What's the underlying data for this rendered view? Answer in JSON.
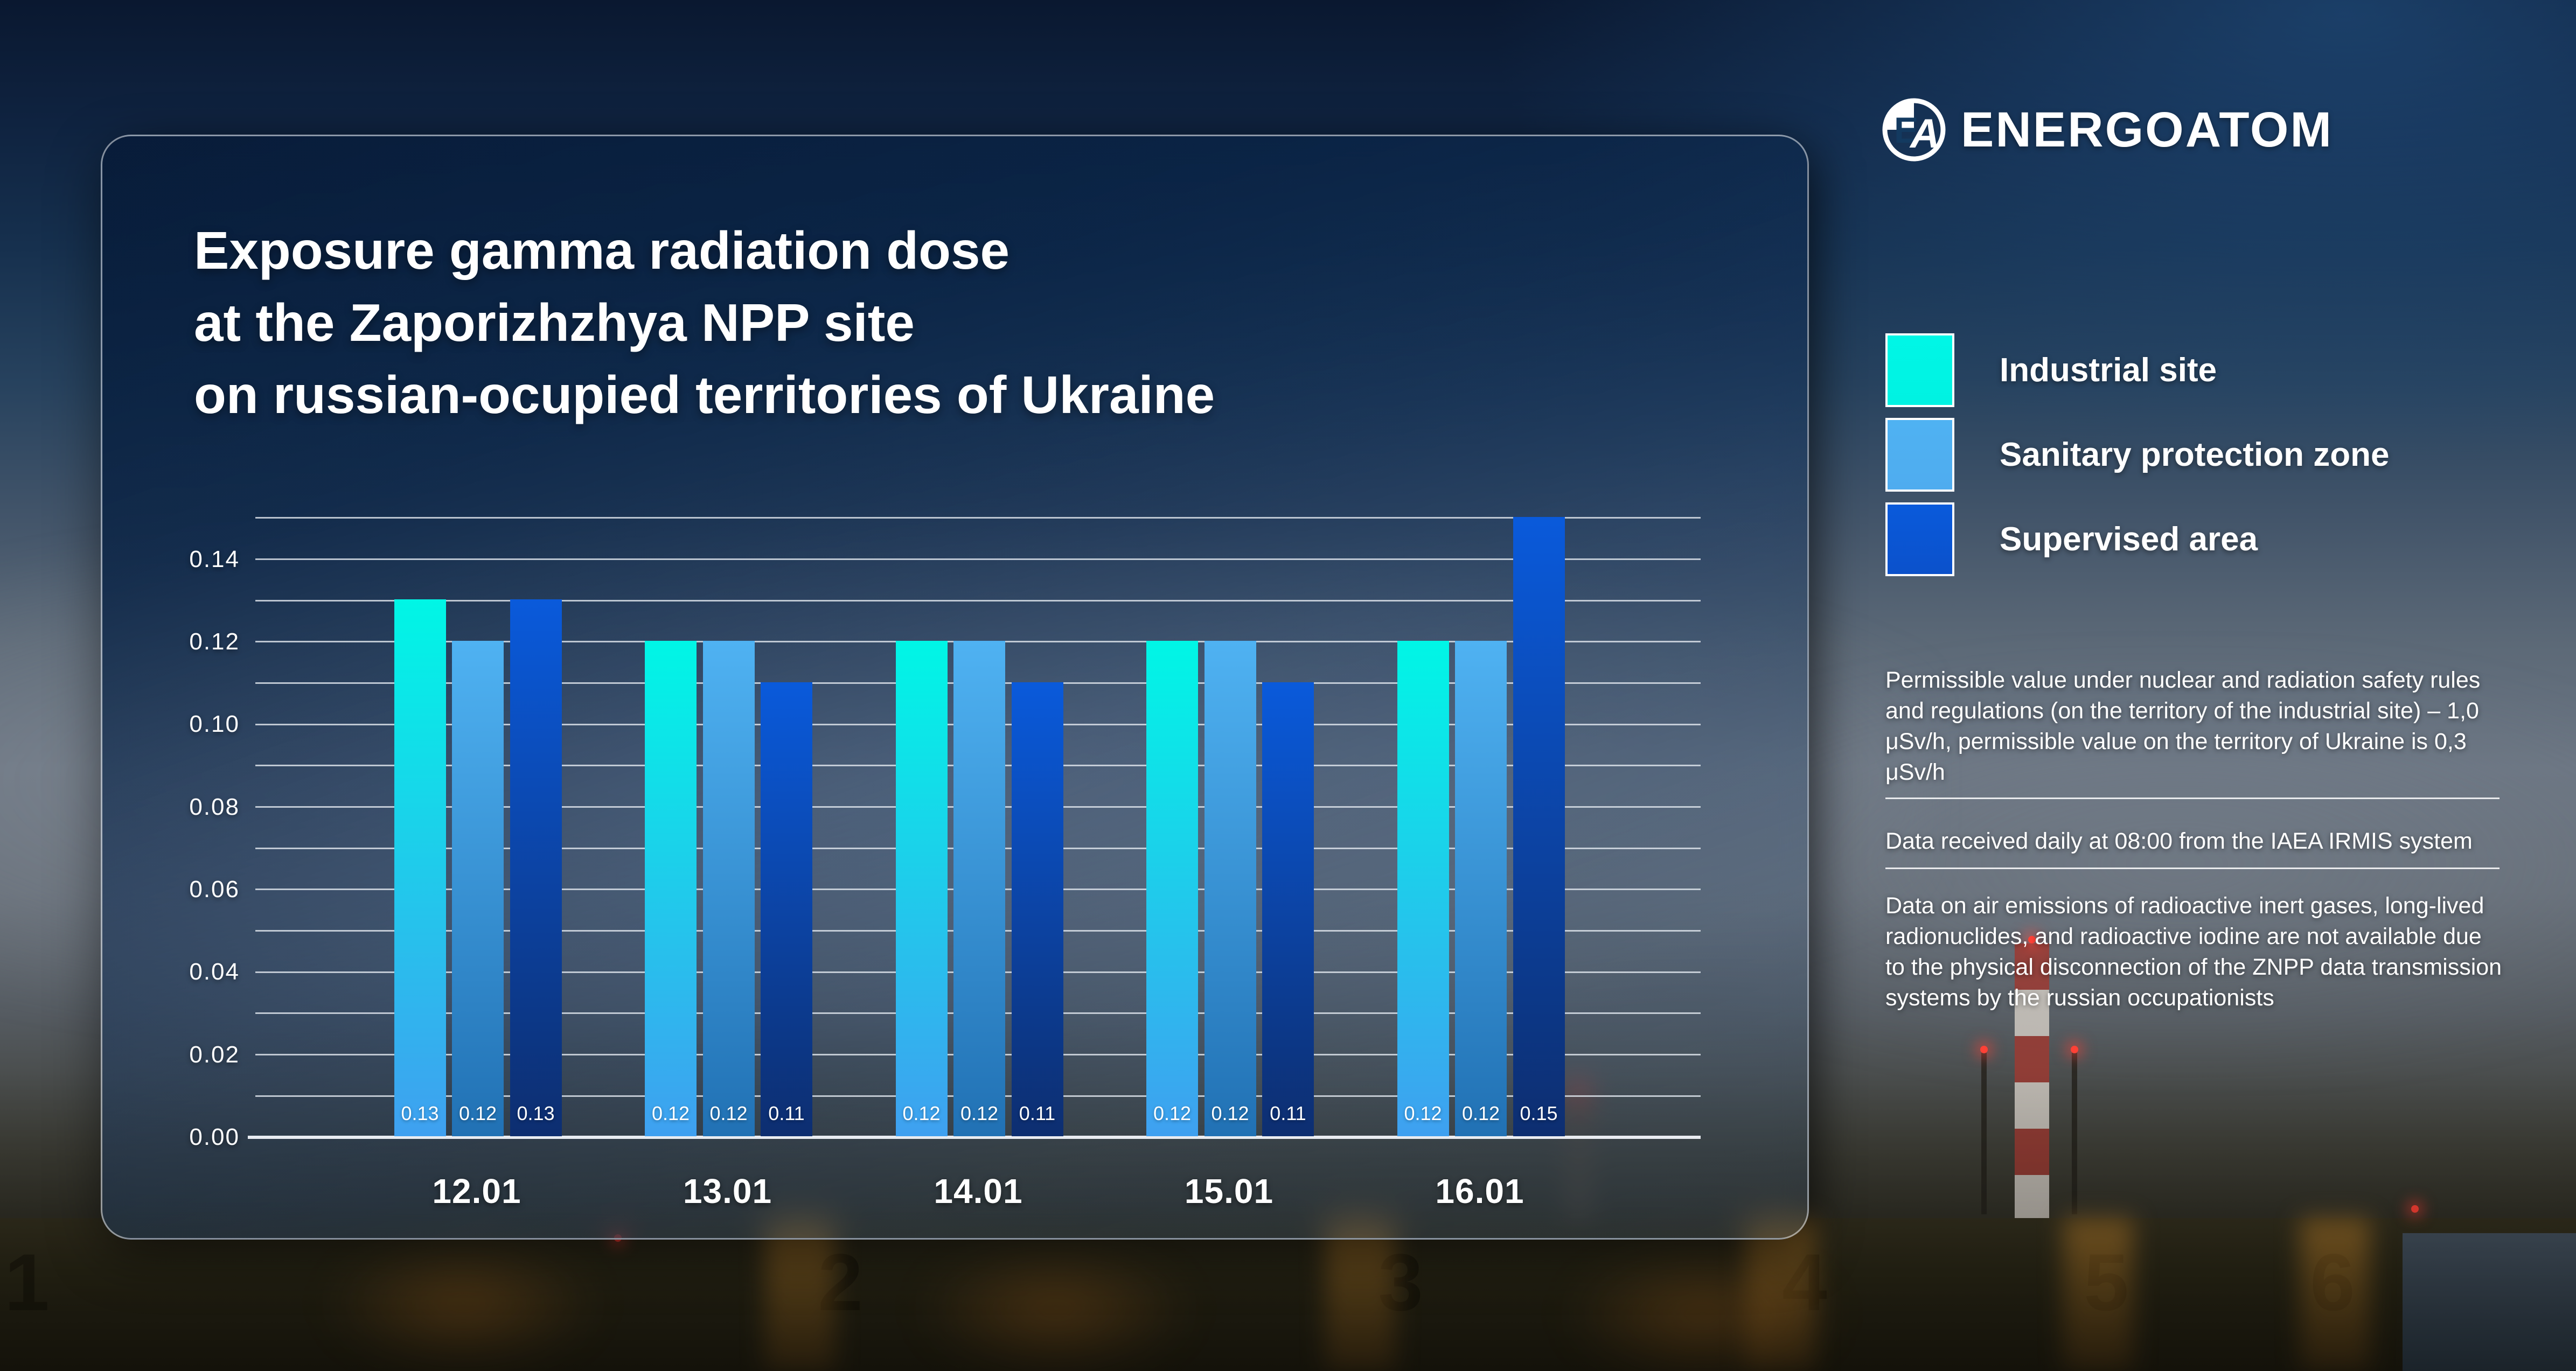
{
  "brand": {
    "logo_text": "ENERGOATOM",
    "monogram_e": "E",
    "monogram_a": "A"
  },
  "title": {
    "lines": [
      "Exposure gamma radiation dose",
      "at the Zaporizhzhya NPP site",
      "on russian-ocupied territories of Ukraine"
    ]
  },
  "legend": {
    "items": [
      {
        "label": "Industrial site",
        "swatch": "#00F2E2",
        "bar_top": "#00F6E6",
        "bar_bottom": "#3FA0F0"
      },
      {
        "label": "Sanitary protection zone",
        "swatch": "#4FACEF",
        "bar_top": "#4FB2F2",
        "bar_bottom": "#2171B4"
      },
      {
        "label": "Supervised area",
        "swatch": "#0B51CB",
        "bar_top": "#0A5ADB",
        "bar_bottom": "#0D2E70"
      }
    ]
  },
  "chart_data": {
    "type": "bar",
    "title": "Exposure gamma radiation dose at the Zaporizhzhya NPP site on russian-ocupied territories of Ukraine",
    "categories": [
      "12.01",
      "13.01",
      "14.01",
      "15.01",
      "16.01"
    ],
    "series": [
      {
        "name": "Industrial site",
        "values": [
          0.13,
          0.12,
          0.12,
          0.12,
          0.12
        ]
      },
      {
        "name": "Sanitary protection zone",
        "values": [
          0.12,
          0.12,
          0.12,
          0.12,
          0.12
        ]
      },
      {
        "name": "Supervised area",
        "values": [
          0.13,
          0.11,
          0.11,
          0.11,
          0.15
        ]
      }
    ],
    "ylim": [
      0,
      0.15
    ],
    "ytick_step": 0.02,
    "grid_step": 0.01,
    "yticks": [
      "0.00",
      "0.02",
      "0.04",
      "0.06",
      "0.08",
      "0.10",
      "0.12",
      "0.14"
    ],
    "grid": true,
    "value_labels": true,
    "legend_position": "right"
  },
  "notes": {
    "paragraphs": [
      "Permissible value under nuclear and radiation safety rules and regulations (on the territory of the industrial site) – 1,0 μSv/h, permissible value on the territory of Ukraine is 0,3 μSv/h",
      "Data received daily at 08:00 from the IAEA IRMIS system",
      "Data on air emissions of radioactive inert gases, long-lived radionuclides, and radioactive iodine are not available due to the physical disconnection of the ZNPP data transmission systems by the russian occupationists"
    ]
  },
  "background": {
    "unit_numbers": [
      "1",
      "2",
      "3",
      "4",
      "5",
      "6"
    ]
  }
}
